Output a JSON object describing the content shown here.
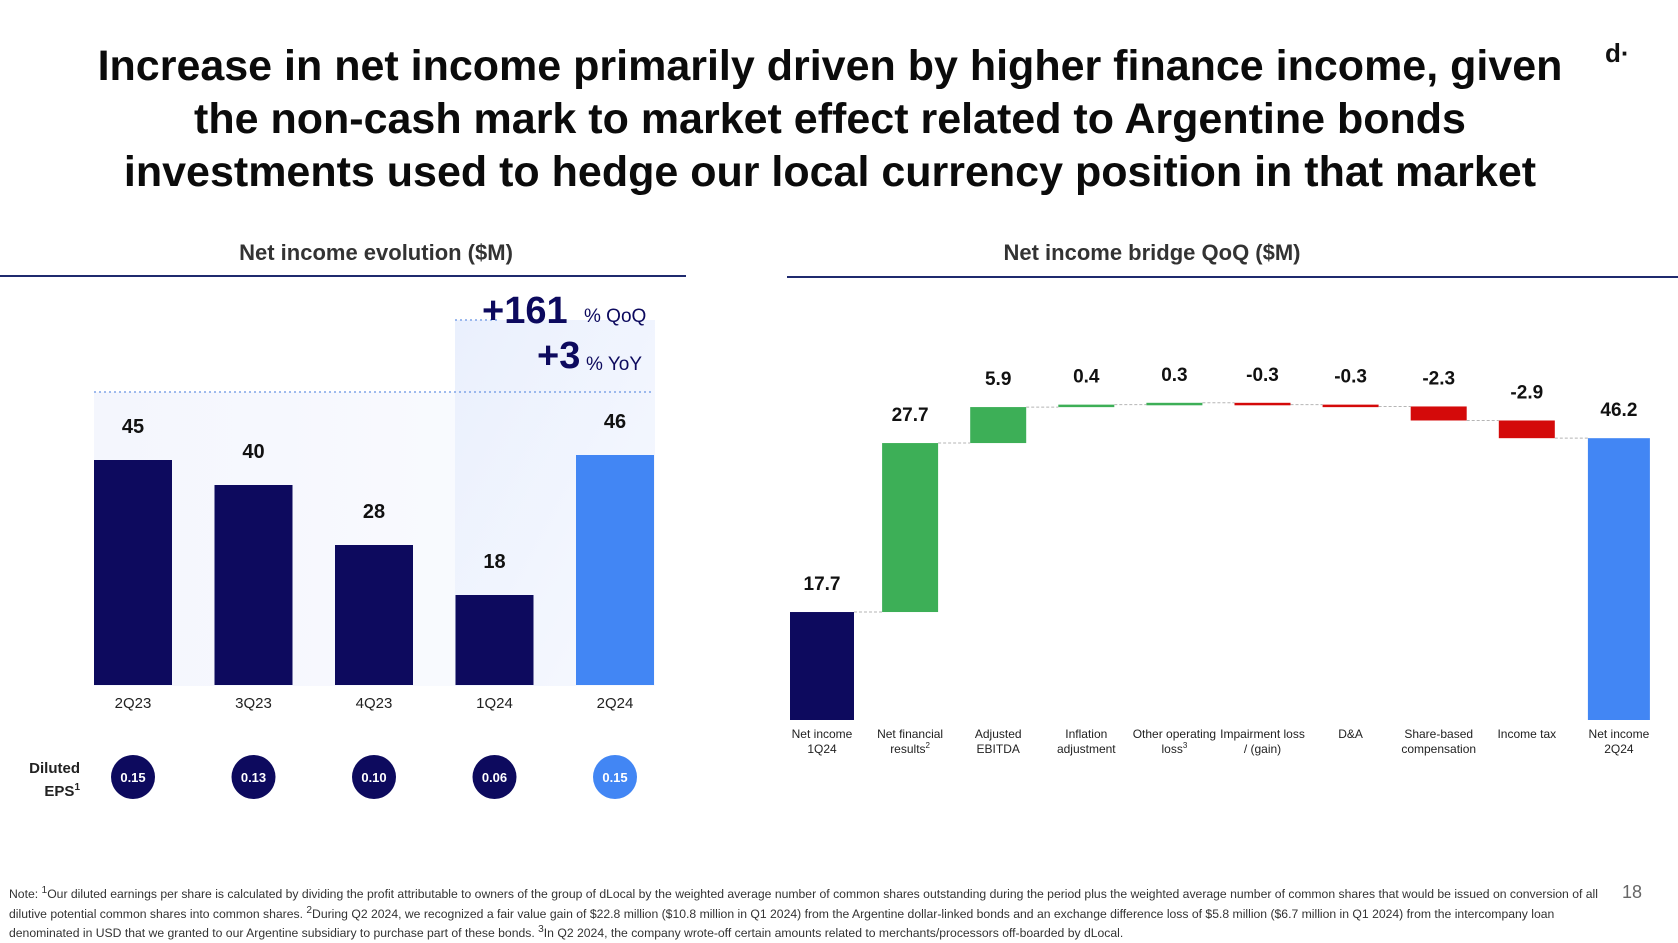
{
  "title_lines": [
    "Increase in net income primarily driven by higher finance income, given",
    "the non-cash mark to market effect related to Argentine bonds",
    "investments used to hedge our local currency position in that market"
  ],
  "logo": "d·",
  "page_number": "18",
  "colors": {
    "navy": "#0d0a5e",
    "light_blue": "#4286f4",
    "green": "#3daf57",
    "red": "#d40a0a",
    "rule": "#1f2a6e"
  },
  "left_chart": {
    "section_title": "Net income evolution ($M)",
    "qoq_value": "+161",
    "qoq_label": "% QoQ",
    "yoy_value": "+3",
    "yoy_label": "% YoY",
    "eps_label_line1": "Diluted",
    "eps_label_line2": "EPS",
    "eps_label_sup": "1",
    "eps": [
      "0.15",
      "0.13",
      "0.10",
      "0.06",
      "0.15"
    ]
  },
  "right_chart": {
    "section_title": "Net income bridge QoQ ($M)"
  },
  "chart_data": [
    {
      "type": "bar",
      "title": "Net income evolution ($M)",
      "categories": [
        "2Q23",
        "3Q23",
        "4Q23",
        "1Q24",
        "2Q24"
      ],
      "values": [
        45,
        40,
        28,
        18,
        46
      ],
      "data_labels": [
        "45",
        "40",
        "28",
        "18",
        "46"
      ],
      "highlight": "2Q24",
      "ylim": [
        0,
        50
      ]
    },
    {
      "type": "bar",
      "subtype": "waterfall",
      "title": "Net income bridge QoQ ($M)",
      "categories": [
        [
          "Net income",
          "1Q24"
        ],
        [
          "Net financial",
          "results"
        ],
        [
          "Adjusted",
          "EBITDA"
        ],
        [
          "Inflation",
          "adjustment"
        ],
        [
          "Other operating",
          "loss"
        ],
        [
          "Impairment loss",
          "/ (gain)"
        ],
        [
          "D&A"
        ],
        [
          "Share-based",
          "compensation"
        ],
        [
          "Income tax"
        ],
        [
          "Net income",
          "2Q24"
        ]
      ],
      "category_superscripts": [
        "",
        "2",
        "",
        "",
        "3",
        "",
        "",
        "",
        "",
        ""
      ],
      "values": [
        17.7,
        27.7,
        5.9,
        0.4,
        0.3,
        -0.3,
        -0.3,
        -2.3,
        -2.9,
        46.2
      ],
      "data_labels": [
        "17.7",
        "27.7",
        "5.9",
        "0.4",
        "0.3",
        "-0.3",
        "-0.3",
        "-2.3",
        "-2.9",
        "46.2"
      ],
      "kinds": [
        "total",
        "delta",
        "delta",
        "delta",
        "delta",
        "delta",
        "delta",
        "delta",
        "delta",
        "total"
      ],
      "ylim": [
        0,
        52
      ]
    }
  ],
  "note": {
    "prefix": "Note: ",
    "sup1": "1",
    "text1": "Our diluted earnings per share is calculated by dividing the profit attributable to owners of the group of dLocal by the weighted average number of common shares outstanding during the period plus the weighted average number of common shares that would be issued on conversion of all dilutive potential common shares into common shares. ",
    "sup2": "2",
    "text2": "During Q2 2024, we recognized a fair value gain of $22.8 million ($10.8 million in Q1 2024) from the Argentine dollar-linked bonds and an exchange difference loss of $5.8 million ($6.7 million in Q1 2024) from the intercompany loan denominated in USD that we granted to our Argentine subsidiary to purchase part of these bonds. ",
    "sup3": "3",
    "text3": "In Q2 2024, the company wrote-off certain amounts related to merchants/processors off-boarded by dLocal."
  }
}
